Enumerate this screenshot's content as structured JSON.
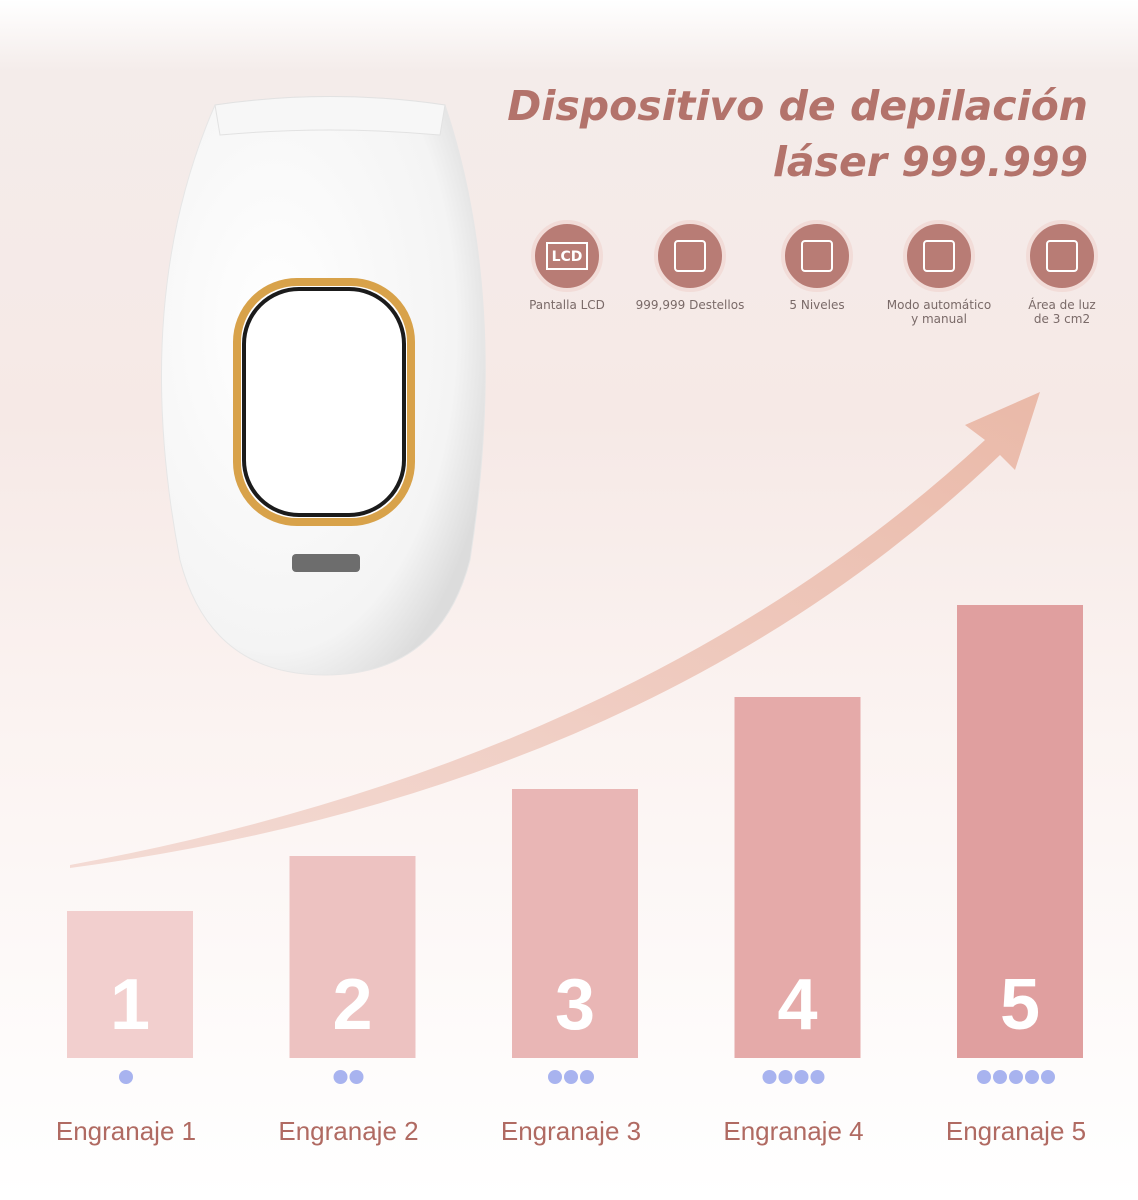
{
  "title": [
    "Dispositivo de depilación",
    "láser 999.999"
  ],
  "features": [
    {
      "icon": "LCD",
      "label": [
        "Pantalla LCD"
      ]
    },
    {
      "label": [
        "999,999 Destellos"
      ]
    },
    {
      "label": [
        "5 Niveles"
      ]
    },
    {
      "label": [
        "Modo automático",
        "y manual"
      ]
    },
    {
      "label": [
        "Área de luz",
        "de 3 cm2"
      ]
    }
  ],
  "levels": [
    {
      "number": "1",
      "label": "Engranaje 1"
    },
    {
      "number": "2",
      "label": "Engranaje 2"
    },
    {
      "number": "3",
      "label": "Engranaje 3"
    },
    {
      "number": "4",
      "label": "Engranaje 4"
    },
    {
      "number": "5",
      "label": "Engranaje 5"
    }
  ]
}
